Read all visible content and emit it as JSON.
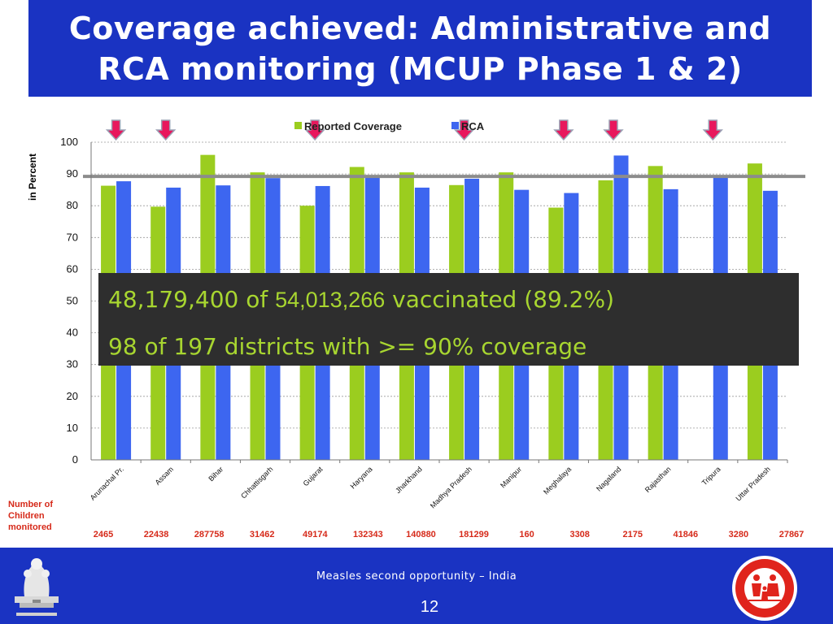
{
  "slide": {
    "title_line1": "Coverage achieved: Administrative and",
    "title_line2": "RCA monitoring (MCUP Phase 1 & 2)",
    "overlay_line1_prefix": "48,179,400 of ",
    "overlay_line1_number": "54,013,266",
    "overlay_line1_suffix": " vaccinated (89.2%)",
    "overlay_line2": "98 of 197 districts with >= 90% coverage",
    "monitored_label": [
      "Number of",
      "Children",
      "monitored"
    ],
    "children_monitored": [
      "2465",
      "22438",
      "287758",
      "31462",
      "49174",
      "132343",
      "140880",
      "181299",
      "160",
      "3308",
      "2175",
      "41846",
      "3280",
      "27867"
    ],
    "footer_text": "Measles second opportunity – India",
    "page_number": "12"
  },
  "colors": {
    "title_bg": "#1a33c2",
    "reported": "#9bcd1f",
    "rca": "#3d66f0",
    "marker": "#e8175d",
    "threshold": "#8c8c8c",
    "overlay_bg": "#2e2e2e",
    "overlay_text": "#a8d630",
    "count_text": "#d62a1a"
  },
  "chart_data": {
    "type": "bar",
    "ylabel": "in Percent",
    "ylim": [
      0,
      100
    ],
    "yticks": [
      0,
      10,
      20,
      30,
      40,
      50,
      60,
      70,
      80,
      90,
      100
    ],
    "grid": true,
    "legend_position": "top-center",
    "categories": [
      "Arunachal Pr.",
      "Assam",
      "Bihar",
      "Chhattisgarh",
      "Gujarat",
      "Haryana",
      "Jharkhand",
      "Madhya Pradesh",
      "Manipur",
      "Meghalaya",
      "Nagaland",
      "Rajasthan",
      "Tripura",
      "Uttar Pradesh"
    ],
    "series": [
      {
        "name": "Reported Coverage",
        "values": [
          86.3,
          79.7,
          96.0,
          90.5,
          80.0,
          92.2,
          90.5,
          86.5,
          90.5,
          79.4,
          88.0,
          92.5,
          null,
          93.3
        ]
      },
      {
        "name": "RCA",
        "values": [
          87.7,
          85.7,
          86.4,
          88.7,
          86.2,
          89.0,
          85.7,
          88.5,
          85.0,
          84.0,
          95.8,
          85.2,
          88.8,
          84.7
        ]
      }
    ],
    "threshold": 90,
    "flagged_categories": [
      "Arunachal Pr.",
      "Assam",
      "Gujarat",
      "Madhya Pradesh",
      "Meghalaya",
      "Nagaland",
      "Tripura"
    ]
  },
  "icons": {
    "left_logo": "state-emblem-icon",
    "right_logo": "family-logo-icon",
    "marker": "down-arrow-icon"
  }
}
